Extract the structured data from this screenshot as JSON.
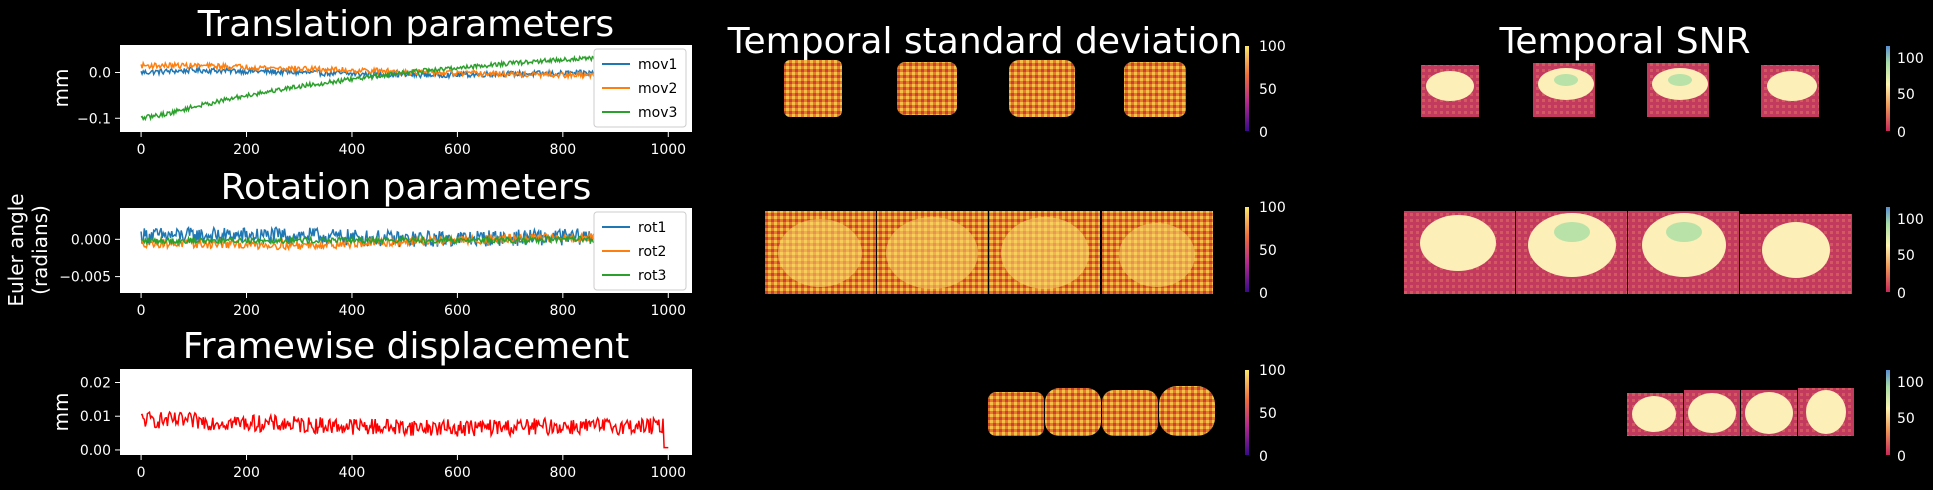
{
  "chart_data": [
    {
      "type": "line",
      "title": "Translation parameters",
      "ylabel": "mm",
      "xlim": [
        -40,
        1045
      ],
      "ylim": [
        -0.13,
        0.06
      ],
      "xticks": [
        "0",
        "200",
        "400",
        "600",
        "800",
        "1000"
      ],
      "yticks": [
        "0.0",
        "-0.1"
      ],
      "legend": "right",
      "series": [
        {
          "name": "mov1",
          "color": "#1f77b4",
          "points": [
            [
              0,
              0.0
            ],
            [
              100,
              0.005
            ],
            [
              200,
              0.003
            ],
            [
              300,
              0.0
            ],
            [
              400,
              -0.003
            ],
            [
              500,
              -0.005
            ],
            [
              600,
              -0.005
            ],
            [
              700,
              -0.003
            ],
            [
              800,
              -0.002
            ],
            [
              900,
              0.0
            ],
            [
              1000,
              0.0
            ]
          ],
          "noise": 0.006
        },
        {
          "name": "mov2",
          "color": "#ff7f0e",
          "points": [
            [
              0,
              0.015
            ],
            [
              100,
              0.015
            ],
            [
              200,
              0.012
            ],
            [
              300,
              0.008
            ],
            [
              400,
              0.005
            ],
            [
              500,
              0.002
            ],
            [
              600,
              -0.002
            ],
            [
              700,
              -0.004
            ],
            [
              800,
              -0.006
            ],
            [
              900,
              -0.006
            ],
            [
              1000,
              -0.008
            ]
          ],
          "noise": 0.006
        },
        {
          "name": "mov3",
          "color": "#2ca02c",
          "points": [
            [
              0,
              -0.1
            ],
            [
              50,
              -0.09
            ],
            [
              100,
              -0.075
            ],
            [
              200,
              -0.05
            ],
            [
              300,
              -0.03
            ],
            [
              400,
              -0.015
            ],
            [
              500,
              0.0
            ],
            [
              600,
              0.01
            ],
            [
              700,
              0.02
            ],
            [
              800,
              0.028
            ],
            [
              900,
              0.033
            ],
            [
              1000,
              0.035
            ]
          ],
          "noise": 0.005
        }
      ]
    },
    {
      "type": "line",
      "title": "Rotation parameters",
      "ylabel": "Euler angle\n(radians)",
      "xlim": [
        -40,
        1045
      ],
      "ylim": [
        -0.0072,
        0.0042
      ],
      "xticks": [
        "0",
        "200",
        "400",
        "600",
        "800",
        "1000"
      ],
      "yticks": [
        "0.000",
        "-0.005"
      ],
      "legend": "right",
      "series": [
        {
          "name": "rot1",
          "color": "#1f77b4",
          "points": [
            [
              0,
              0.0005
            ],
            [
              300,
              0.0005
            ],
            [
              500,
              0.0
            ],
            [
              800,
              0.0003
            ],
            [
              1000,
              0.0006
            ]
          ],
          "noise": 0.0011
        },
        {
          "name": "rot2",
          "color": "#ff7f0e",
          "points": [
            [
              0,
              -0.0005
            ],
            [
              300,
              -0.0008
            ],
            [
              500,
              -0.0003
            ],
            [
              800,
              0.0002
            ],
            [
              1000,
              0.0004
            ]
          ],
          "noise": 0.0006
        },
        {
          "name": "rot3",
          "color": "#2ca02c",
          "points": [
            [
              0,
              -0.0002
            ],
            [
              1000,
              0.0
            ]
          ],
          "noise": 0.0004
        }
      ]
    },
    {
      "type": "line",
      "title": "Framewise displacement",
      "ylabel": "mm",
      "xlim": [
        -40,
        1045
      ],
      "ylim": [
        -0.0015,
        0.024
      ],
      "xticks": [
        "0",
        "200",
        "400",
        "600",
        "800",
        "1000"
      ],
      "yticks": [
        "0.02",
        "0.01",
        "0.00"
      ],
      "series": [
        {
          "name": "",
          "color": "#ff0000",
          "points": [
            [
              0,
              0.009
            ],
            [
              200,
              0.008
            ],
            [
              400,
              0.007
            ],
            [
              600,
              0.0065
            ],
            [
              800,
              0.007
            ],
            [
              1000,
              0.007
            ]
          ],
          "noise": 0.0025
        }
      ]
    },
    {
      "type": "heatmap",
      "title": "Temporal standard deviation",
      "colormap": "plasma-like",
      "colorbar_ticks": [
        "100",
        "50",
        "0"
      ],
      "panels": [
        "axial",
        "coronal",
        "sagittal"
      ]
    },
    {
      "type": "heatmap",
      "title": "Temporal SNR",
      "colormap": "spectral-like",
      "colorbar_ticks": [
        "100",
        "50",
        "0"
      ],
      "panels": [
        "axial",
        "coronal",
        "sagittal"
      ]
    }
  ],
  "colors": {
    "background": "#000000",
    "axes_face": "#ffffff",
    "text": "#ffffff"
  }
}
